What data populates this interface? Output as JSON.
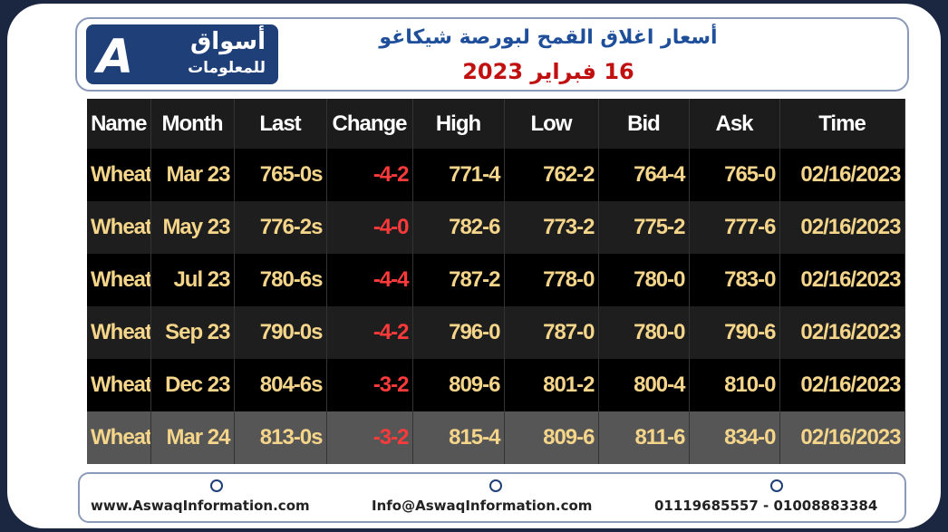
{
  "header": {
    "logo_line1": "أسواق",
    "logo_line2": "للمعلومات",
    "title": "أسعار اغلاق القمح لبورصة شيكاغو",
    "date": "16 فبراير 2023"
  },
  "table": {
    "columns": [
      "Name",
      "Month",
      "Last",
      "Change",
      "High",
      "Low",
      "Bid",
      "Ask",
      "Time"
    ],
    "rows": [
      [
        "Wheat",
        "Mar 23",
        "765-0s",
        "-4-2",
        "771-4",
        "762-2",
        "764-4",
        "765-0",
        "02/16/2023"
      ],
      [
        "Wheat",
        "May 23",
        "776-2s",
        "-4-0",
        "782-6",
        "773-2",
        "775-2",
        "777-6",
        "02/16/2023"
      ],
      [
        "Wheat",
        "Jul 23",
        "780-6s",
        "-4-4",
        "787-2",
        "778-0",
        "780-0",
        "783-0",
        "02/16/2023"
      ],
      [
        "Wheat",
        "Sep 23",
        "790-0s",
        "-4-2",
        "796-0",
        "787-0",
        "780-0",
        "790-6",
        "02/16/2023"
      ],
      [
        "Wheat",
        "Dec 23",
        "804-6s",
        "-3-2",
        "809-6",
        "801-2",
        "800-4",
        "810-0",
        "02/16/2023"
      ],
      [
        "Wheat",
        "Mar 24",
        "813-0s",
        "-3-2",
        "815-4",
        "809-6",
        "811-6",
        "834-0",
        "02/16/2023"
      ]
    ]
  },
  "footer": {
    "website": "www.AswaqInformation.com",
    "email": "Info@AswaqInformation.com",
    "phone": "01119685557 - 01008883384"
  }
}
